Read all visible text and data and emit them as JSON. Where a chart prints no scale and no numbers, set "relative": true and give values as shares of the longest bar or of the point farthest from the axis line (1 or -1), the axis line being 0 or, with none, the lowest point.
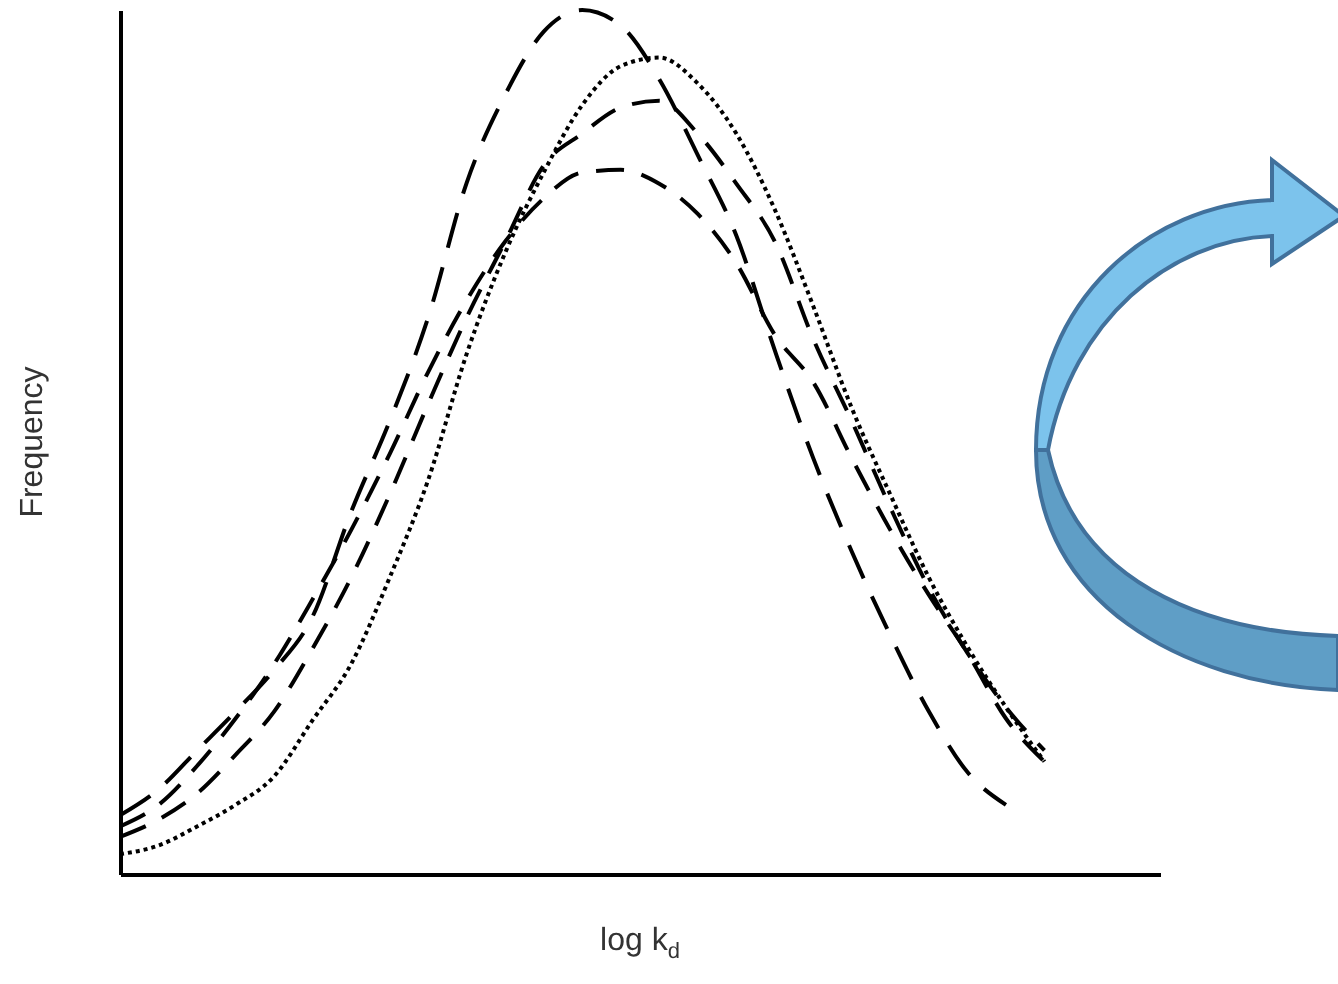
{
  "chart_data": {
    "type": "line",
    "relative": true,
    "xlabel": "log k$_{d}$",
    "ylabel": "Frequency",
    "grid": false,
    "marker": "none",
    "categories": [
      null,
      null,
      null,
      null,
      null,
      null,
      null,
      null,
      null,
      null,
      null,
      null,
      null,
      null,
      null,
      null,
      null,
      null,
      null,
      null,
      null,
      null,
      null,
      null,
      null,
      null,
      null,
      null
    ],
    "series": [
      {
        "color": "#000000",
        "line_style": "dashed",
        "values": [
          0.068,
          0.098,
          0.143,
          0.188,
          0.236,
          0.298,
          0.419,
          0.524,
          0.644,
          0.8,
          0.902,
          0.975,
          1,
          0.982,
          0.92,
          0.832,
          0.739,
          0.606,
          0.481,
          0.373,
          0.276,
          0.188,
          0.118,
          0.08,
          null,
          null,
          null,
          null
        ]
      },
      {
        "color": "#000000",
        "line_style": "dashed",
        "values": [
          0.043,
          0.063,
          0.093,
          0.138,
          0.188,
          0.261,
          0.343,
          0.439,
          0.544,
          0.644,
          0.732,
          0.82,
          0.857,
          0.887,
          0.895,
          0.857,
          0.799,
          0.732,
          0.619,
          0.524,
          0.424,
          0.331,
          0.256,
          0.193,
          0.143,
          null,
          null,
          null
        ]
      },
      {
        "color": "#000000",
        "line_style": "dashed",
        "values": [
          0.055,
          0.08,
          0.125,
          0.18,
          0.243,
          0.318,
          0.398,
          0.486,
          0.581,
          0.664,
          0.732,
          0.782,
          0.812,
          0.815,
          0.799,
          0.764,
          0.707,
          0.624,
          0.569,
          0.481,
          0.398,
          0.323,
          0.256,
          0.18,
          0.13,
          null,
          null,
          null
        ]
      },
      {
        "color": "#000000",
        "line_style": "dotted",
        "values": [
          0.023,
          0.033,
          0.055,
          0.08,
          0.113,
          0.178,
          0.243,
          0.343,
          0.456,
          0.602,
          0.719,
          0.812,
          0.89,
          0.935,
          0.945,
          0.915,
          0.857,
          0.769,
          0.657,
          0.539,
          0.439,
          0.343,
          0.263,
          0.193,
          0.13,
          null,
          null,
          null
        ]
      }
    ]
  }
}
